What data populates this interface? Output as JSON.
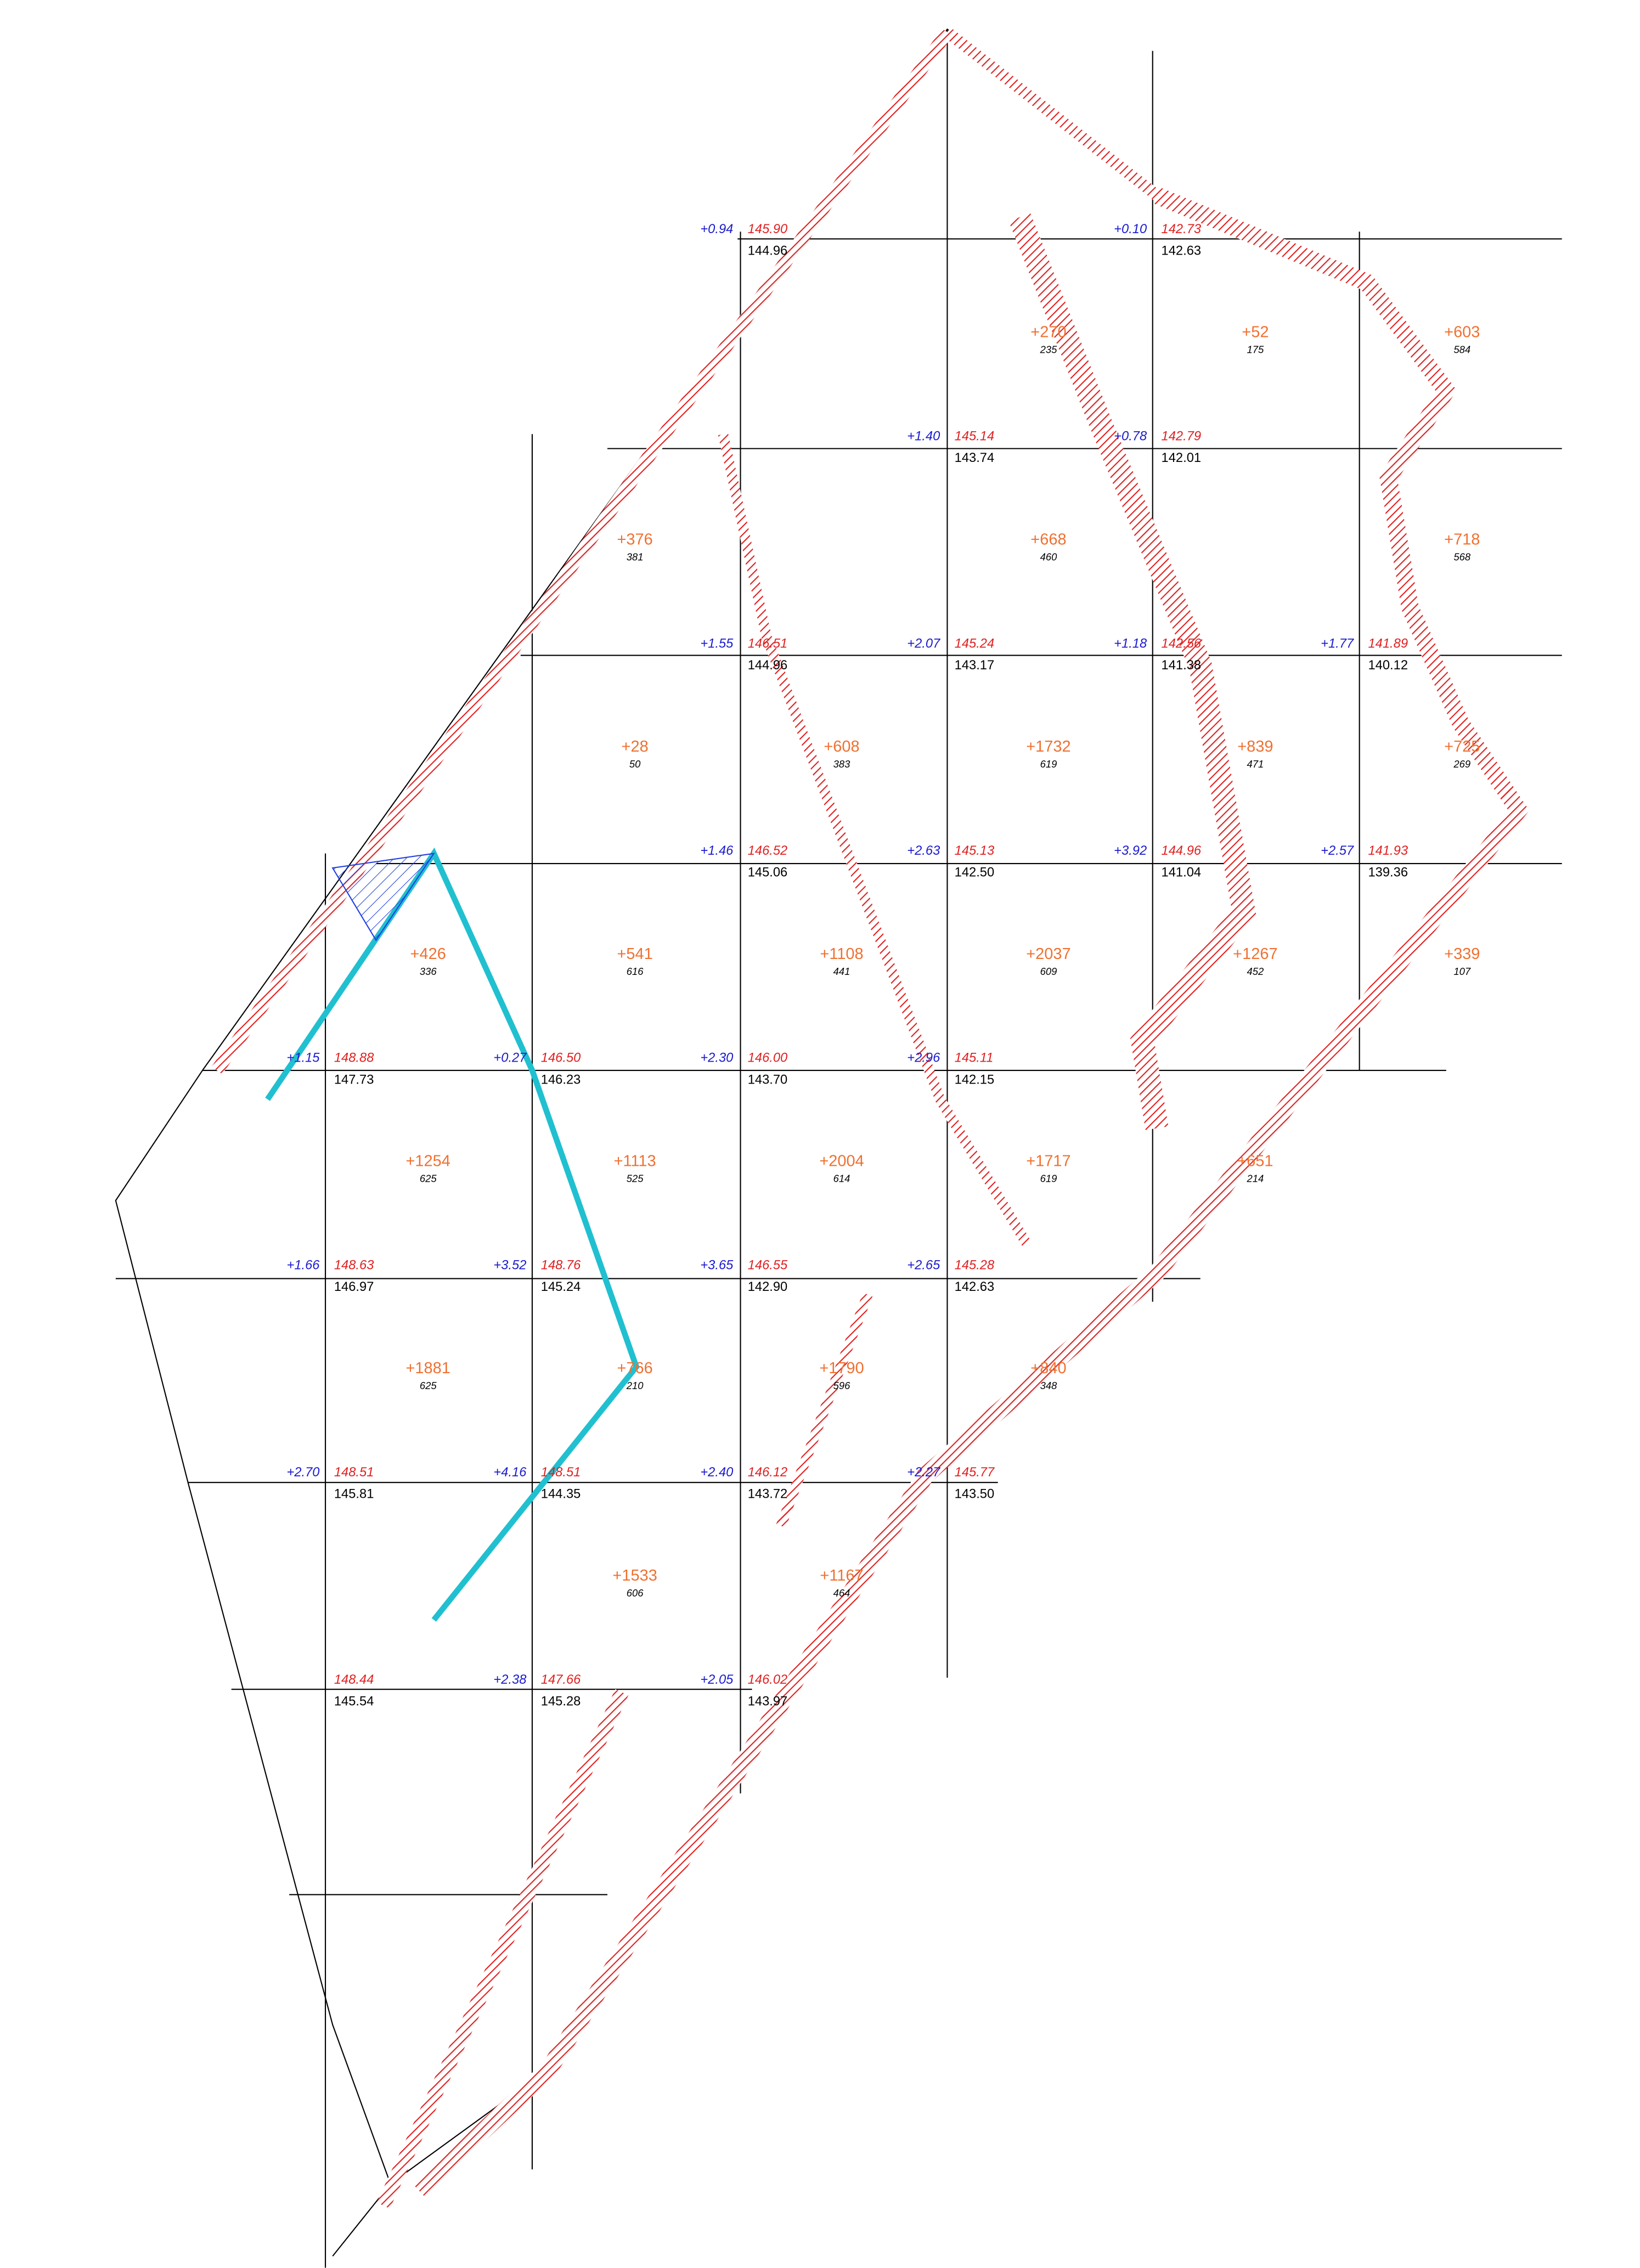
{
  "grid": {
    "rows": [
      [
        null,
        null,
        {
          "design": "145.90",
          "existing": "144.96",
          "diff": "+0.94"
        },
        null,
        {
          "design": "142.73",
          "existing": "142.63",
          "diff": "+0.10"
        },
        null
      ],
      [
        null,
        null,
        null,
        {
          "design": "145.14",
          "existing": "143.74",
          "diff": "+1.40"
        },
        {
          "design": "142.79",
          "existing": "142.01",
          "diff": "+0.78"
        },
        null
      ],
      [
        null,
        null,
        {
          "design": "146.51",
          "existing": "144.96",
          "diff": "+1.55"
        },
        {
          "design": "145.24",
          "existing": "143.17",
          "diff": "+2.07"
        },
        {
          "design": "142.56",
          "existing": "141.38",
          "diff": "+1.18"
        },
        {
          "design": "141.89",
          "existing": "140.12",
          "diff": "+1.77"
        }
      ],
      [
        null,
        null,
        {
          "design": "146.52",
          "existing": "145.06",
          "diff": "+1.46"
        },
        {
          "design": "145.13",
          "existing": "142.50",
          "diff": "+2.63"
        },
        {
          "design": "144.96",
          "existing": "141.04",
          "diff": "+3.92"
        },
        {
          "design": "141.93",
          "existing": "139.36",
          "diff": "+2.57"
        }
      ],
      [
        {
          "design": "148.88",
          "existing": "147.73",
          "diff": "+1.15"
        },
        {
          "design": "146.50",
          "existing": "146.23",
          "diff": "+0.27"
        },
        {
          "design": "146.00",
          "existing": "143.70",
          "diff": "+2.30"
        },
        {
          "design": "145.11",
          "existing": "142.15",
          "diff": "+2.96"
        },
        null,
        null
      ],
      [
        {
          "design": "148.63",
          "existing": "146.97",
          "diff": "+1.66"
        },
        {
          "design": "148.76",
          "existing": "145.24",
          "diff": "+3.52"
        },
        {
          "design": "146.55",
          "existing": "142.90",
          "diff": "+3.65"
        },
        {
          "design": "145.28",
          "existing": "142.63",
          "diff": "+2.65"
        },
        null,
        null
      ],
      [
        {
          "design": "148.51",
          "existing": "145.81",
          "diff": "+2.70"
        },
        {
          "design": "148.51",
          "existing": "144.35",
          "diff": "+4.16"
        },
        {
          "design": "146.12",
          "existing": "143.72",
          "diff": "+2.40"
        },
        {
          "design": "145.77",
          "existing": "143.50",
          "diff": "+2.27"
        },
        null,
        null
      ],
      [
        {
          "design": "148.44",
          "existing": "145.54"
        },
        {
          "design": "147.66",
          "existing": "145.28",
          "diff": "+2.38"
        },
        {
          "design": "146.02",
          "existing": "143.97",
          "diff": "+2.05"
        },
        null,
        null,
        null
      ]
    ]
  },
  "cells": [
    [
      null,
      null,
      null,
      {
        "volume": "+270",
        "area": "235"
      },
      {
        "volume": "+52",
        "area": "175"
      },
      {
        "volume": "+603",
        "area": "584"
      }
    ],
    [
      null,
      {
        "volume": "+376",
        "area": "381"
      },
      null,
      {
        "volume": "+668",
        "area": "460"
      },
      null,
      {
        "volume": "+718",
        "area": "568"
      }
    ],
    [
      null,
      {
        "volume": "+28",
        "area": "50"
      },
      {
        "volume": "+608",
        "area": "383"
      },
      {
        "volume": "+1732",
        "area": "619"
      },
      {
        "volume": "+839",
        "area": "471"
      },
      {
        "volume": "+725",
        "area": "269"
      }
    ],
    [
      {
        "volume": "+426",
        "area": "336"
      },
      {
        "volume": "+541",
        "area": "616"
      },
      {
        "volume": "+1108",
        "area": "441"
      },
      {
        "volume": "+2037",
        "area": "609"
      },
      {
        "volume": "+1267",
        "area": "452"
      },
      {
        "volume": "+339",
        "area": "107"
      }
    ],
    [
      {
        "volume": "+1254",
        "area": "625"
      },
      {
        "volume": "+1113",
        "area": "525"
      },
      {
        "volume": "+2004",
        "area": "614"
      },
      {
        "volume": "+1717",
        "area": "619"
      },
      {
        "volume": "+651",
        "area": "214"
      },
      null
    ],
    [
      {
        "volume": "+1881",
        "area": "625"
      },
      {
        "volume": "+766",
        "area": "210"
      },
      {
        "volume": "+1790",
        "area": "596"
      },
      {
        "volume": "+840",
        "area": "348"
      },
      null,
      null
    ],
    [
      null,
      {
        "volume": "+1533",
        "area": "606"
      },
      {
        "volume": "+1167",
        "area": "464"
      },
      null,
      null,
      null
    ]
  ]
}
